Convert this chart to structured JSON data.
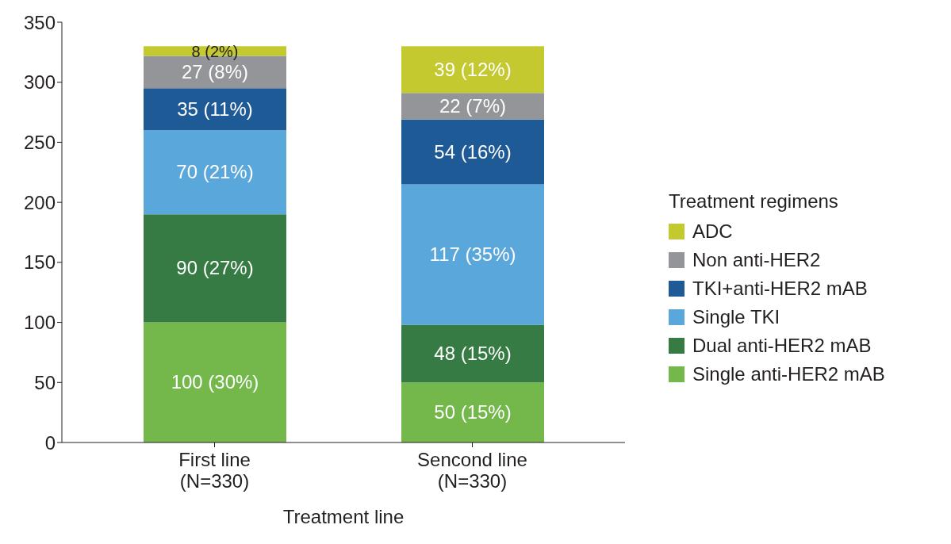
{
  "chart_data": {
    "type": "bar",
    "stacked": true,
    "xlabel": "Treatment line",
    "legend_title": "Treatment regimens",
    "legend": "right",
    "grid": false,
    "categories": [
      "First line\n(N=330)",
      "Sencond line\n(N=330)"
    ],
    "ylim": [
      0,
      350
    ],
    "yticks": [
      0,
      50,
      100,
      150,
      200,
      250,
      300,
      350
    ],
    "series": [
      {
        "name": "Single anti-HER2 mAB",
        "color": "#74b74a",
        "values": [
          100,
          50
        ],
        "value_labels": [
          "100 (30%)",
          "50 (15%)"
        ]
      },
      {
        "name": "Dual anti-HER2 mAB",
        "color": "#357b43",
        "values": [
          90,
          48
        ],
        "value_labels": [
          "90 (27%)",
          "48 (15%)"
        ]
      },
      {
        "name": "Single TKI",
        "color": "#5aa7dc",
        "values": [
          70,
          117
        ],
        "value_labels": [
          "70 (21%)",
          "117 (35%)"
        ]
      },
      {
        "name": "TKI+anti-HER2 mAB",
        "color": "#1d5a96",
        "values": [
          35,
          54
        ],
        "value_labels": [
          "35 (11%)",
          "54 (16%)"
        ]
      },
      {
        "name": "Non anti-HER2",
        "color": "#939598",
        "values": [
          27,
          22
        ],
        "value_labels": [
          "27 (8%)",
          "22 (7%)"
        ]
      },
      {
        "name": "ADC",
        "color": "#c3c92f",
        "values": [
          8,
          39
        ],
        "value_labels": [
          "8 (2%)",
          "39 (12%)"
        ]
      }
    ]
  }
}
